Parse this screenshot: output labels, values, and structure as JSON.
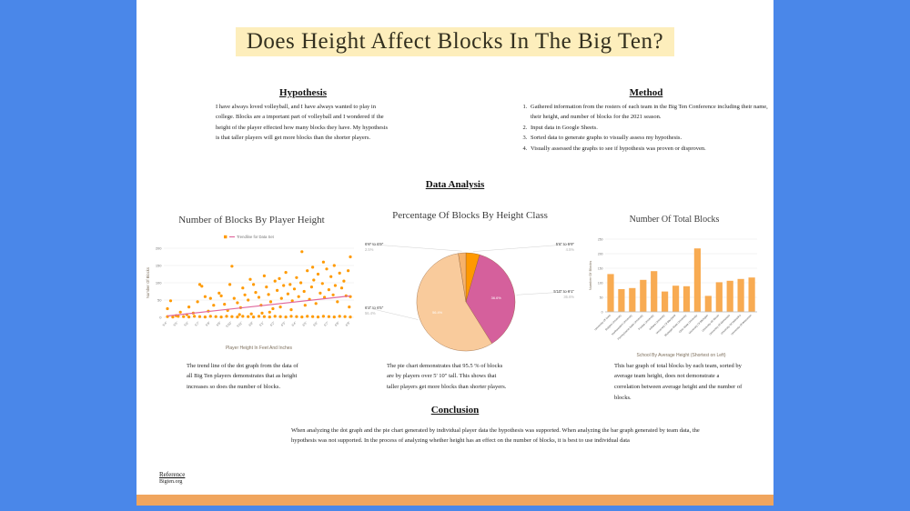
{
  "colors": {
    "background_blue": "#4a87e9",
    "bottom_strip_orange": "#f0a55e",
    "title_highlight": "#fdeebc",
    "dot_orange": "#ff9a00",
    "trendline_pink": "#e0699e",
    "bar_orange": "#f8ab52"
  },
  "title": {
    "text": "Does Height Affect Blocks In The Big Ten?"
  },
  "hypothesis": {
    "heading": "Hypothesis",
    "body": "I have always loved volleyball, and I have always wanted to play in college. Blocks are a important part of volleyball and I wondered if the height of the player effected how many blocks they have. My hypothesis is that taller players will get more blocks than the shorter players."
  },
  "method": {
    "heading": "Method",
    "items": [
      "Gathered information from the rosters of each team in the Big Ten Conference including their name, their height, and number of blocks for the 2021 season.",
      "Input data in Google Sheets.",
      "Sorted data to generate graphs to visually assess my hypothesis.",
      "Visually assessed the graphs to see if hypothesis was proven or disproven."
    ]
  },
  "data_analysis": {
    "heading": "Data Analysis"
  },
  "descriptions": {
    "scatter": "The trend line of the dot graph from the data of all Big Ten players demonstrates that as height increases so does the number of blocks.",
    "pie": "The pie chart demonstrates that 95.5 % of blocks are by players over 5' 10\" tall. This shows that taller players get more blocks than shorter players.",
    "bar": "This bar graph of total blocks by each team, sorted by average team height, does not demonstrate a correlation between average height and the number of blocks."
  },
  "conclusion": {
    "heading": "Conclusion",
    "body": "When analyzing the dot graph and the pie chart generated by individual player data the hypothesis was supported. When analyzing the bar graph generated by team data, the hypothesis was not supported. In the process of analyzing whether height has an effect on the number of blocks, it is best to use individual data"
  },
  "reference": {
    "heading": "Reference",
    "source": "Bigten.org"
  },
  "chart_data": [
    {
      "type": "scatter",
      "title": "Number of Blocks By Player Height",
      "xlabel": "Player Height In Feet And Inches",
      "ylabel": "Number Of Blocks",
      "legend": [
        "Trendline for Data Set"
      ],
      "x_ticks": [
        "5'4\"",
        "5'5\"",
        "5'6\"",
        "5'7\"",
        "5'8\"",
        "5'9\"",
        "5'10\"",
        "5'11\"",
        "6'0\"",
        "6'1\"",
        "6'2\"",
        "6'3\"",
        "6'4\"",
        "6'5\"",
        "6'6\"",
        "6'7\"",
        "6'8\"",
        "6'9\""
      ],
      "ylim": [
        0,
        200
      ],
      "y_ticks": [
        0,
        50,
        100,
        150,
        200
      ],
      "point_color": "#ff9a00",
      "trend_color": "#e0699e",
      "trendline": {
        "x": [
          0,
          17
        ],
        "y": [
          4,
          62
        ]
      },
      "points": [
        [
          0,
          2
        ],
        [
          0.5,
          1
        ],
        [
          1,
          3
        ],
        [
          1.5,
          2
        ],
        [
          2,
          1
        ],
        [
          2.5,
          3
        ],
        [
          3,
          2
        ],
        [
          3.5,
          1
        ],
        [
          4,
          3
        ],
        [
          4.5,
          2
        ],
        [
          5,
          1
        ],
        [
          5.5,
          3
        ],
        [
          6,
          2
        ],
        [
          6.5,
          1
        ],
        [
          7,
          3
        ],
        [
          7.5,
          2
        ],
        [
          8,
          1
        ],
        [
          8.5,
          3
        ],
        [
          9,
          2
        ],
        [
          9.5,
          1
        ],
        [
          10,
          3
        ],
        [
          10.5,
          2
        ],
        [
          11,
          1
        ],
        [
          11.5,
          3
        ],
        [
          12,
          2
        ],
        [
          12.5,
          1
        ],
        [
          13,
          3
        ],
        [
          13.5,
          2
        ],
        [
          14,
          1
        ],
        [
          14.5,
          3
        ],
        [
          15,
          2
        ],
        [
          15.5,
          1
        ],
        [
          16,
          3
        ],
        [
          16.5,
          2
        ],
        [
          17,
          1
        ],
        [
          0,
          25
        ],
        [
          0.3,
          48
        ],
        [
          1.2,
          15
        ],
        [
          2,
          30
        ],
        [
          2.4,
          12
        ],
        [
          3,
          95
        ],
        [
          3.2,
          90
        ],
        [
          3.8,
          18
        ],
        [
          4,
          55
        ],
        [
          4.3,
          35
        ],
        [
          5,
          62
        ],
        [
          5.3,
          38
        ],
        [
          5.6,
          20
        ],
        [
          6,
          148
        ],
        [
          6.2,
          55
        ],
        [
          6.5,
          42
        ],
        [
          6.8,
          28
        ],
        [
          7,
          85
        ],
        [
          7.2,
          65
        ],
        [
          7.5,
          50
        ],
        [
          7.7,
          110
        ],
        [
          8,
          95
        ],
        [
          8.2,
          72
        ],
        [
          8.5,
          58
        ],
        [
          8.7,
          35
        ],
        [
          9,
          120
        ],
        [
          9.2,
          88
        ],
        [
          9.4,
          66
        ],
        [
          9.6,
          45
        ],
        [
          9.8,
          25
        ],
        [
          10,
          105
        ],
        [
          10.2,
          78
        ],
        [
          10.4,
          112
        ],
        [
          10.6,
          55
        ],
        [
          10.8,
          92
        ],
        [
          11,
          130
        ],
        [
          11.2,
          68
        ],
        [
          11.4,
          95
        ],
        [
          11.6,
          48
        ],
        [
          11.8,
          82
        ],
        [
          12,
          115
        ],
        [
          12.2,
          60
        ],
        [
          12.4,
          100
        ],
        [
          12.5,
          190
        ],
        [
          12.7,
          75
        ],
        [
          13,
          135
        ],
        [
          13.2,
          52
        ],
        [
          13.4,
          88
        ],
        [
          13.6,
          108
        ],
        [
          13.8,
          40
        ],
        [
          14,
          125
        ],
        [
          14.2,
          70
        ],
        [
          14.4,
          98
        ],
        [
          14.6,
          58
        ],
        [
          14.8,
          140
        ],
        [
          15,
          80
        ],
        [
          15.2,
          118
        ],
        [
          15.4,
          65
        ],
        [
          15.6,
          92
        ],
        [
          15.8,
          45
        ],
        [
          16,
          128
        ],
        [
          16.2,
          85
        ],
        [
          16.4,
          105
        ],
        [
          16.6,
          62
        ],
        [
          16.8,
          135
        ],
        [
          17,
          175
        ],
        [
          17,
          60
        ],
        [
          16.9,
          30
        ],
        [
          15.5,
          150
        ],
        [
          14.5,
          160
        ],
        [
          13.5,
          145
        ],
        [
          12.8,
          35
        ],
        [
          11.5,
          22
        ],
        [
          10.5,
          30
        ],
        [
          9.5,
          15
        ],
        [
          8.8,
          12
        ],
        [
          7.8,
          10
        ],
        [
          6.7,
          8
        ],
        [
          5.8,
          95
        ],
        [
          4.8,
          70
        ],
        [
          3.5,
          60
        ],
        [
          2.8,
          45
        ],
        [
          1.8,
          8
        ],
        [
          0.8,
          5
        ]
      ]
    },
    {
      "type": "pie",
      "title": "Percentage Of Blocks By Height Class",
      "slices": [
        {
          "label": "5'6\" to 5'9\"",
          "value": 4.5,
          "color": "#ff9900"
        },
        {
          "label": "5'10\" to 6'1\"",
          "value": 36.6,
          "color": "#d5609c"
        },
        {
          "label": "6'2\" to 6'5\"",
          "value": 56.4,
          "color": "#f9cb9c"
        },
        {
          "label": "6'6\" to 6'9\"",
          "value": 2.5,
          "color": "#f6b26b"
        }
      ]
    },
    {
      "type": "bar",
      "title": "Number Of Total Blocks",
      "xlabel": "School By Average Height (Shortest on Left)",
      "ylabel": "Number Of Blocks",
      "bar_color": "#f8ab52",
      "ylim": [
        0,
        250
      ],
      "y_ticks": [
        0,
        50,
        100,
        150,
        200,
        250
      ],
      "categories": [
        "University Of Iowa",
        "Rutgers University",
        "Northwestern University",
        "Pennsylvania State University",
        "Purdue University",
        "Indiana University",
        "University Of Maryland",
        "Michigan State University",
        "Ohio State University",
        "University Of Michigan",
        "University Of Illinois",
        "University Of Minnesota",
        "University Of Nebraska",
        "University Of Wisconsin"
      ],
      "values": [
        130,
        78,
        82,
        110,
        140,
        70,
        90,
        88,
        218,
        55,
        102,
        107,
        113,
        118
      ]
    }
  ]
}
